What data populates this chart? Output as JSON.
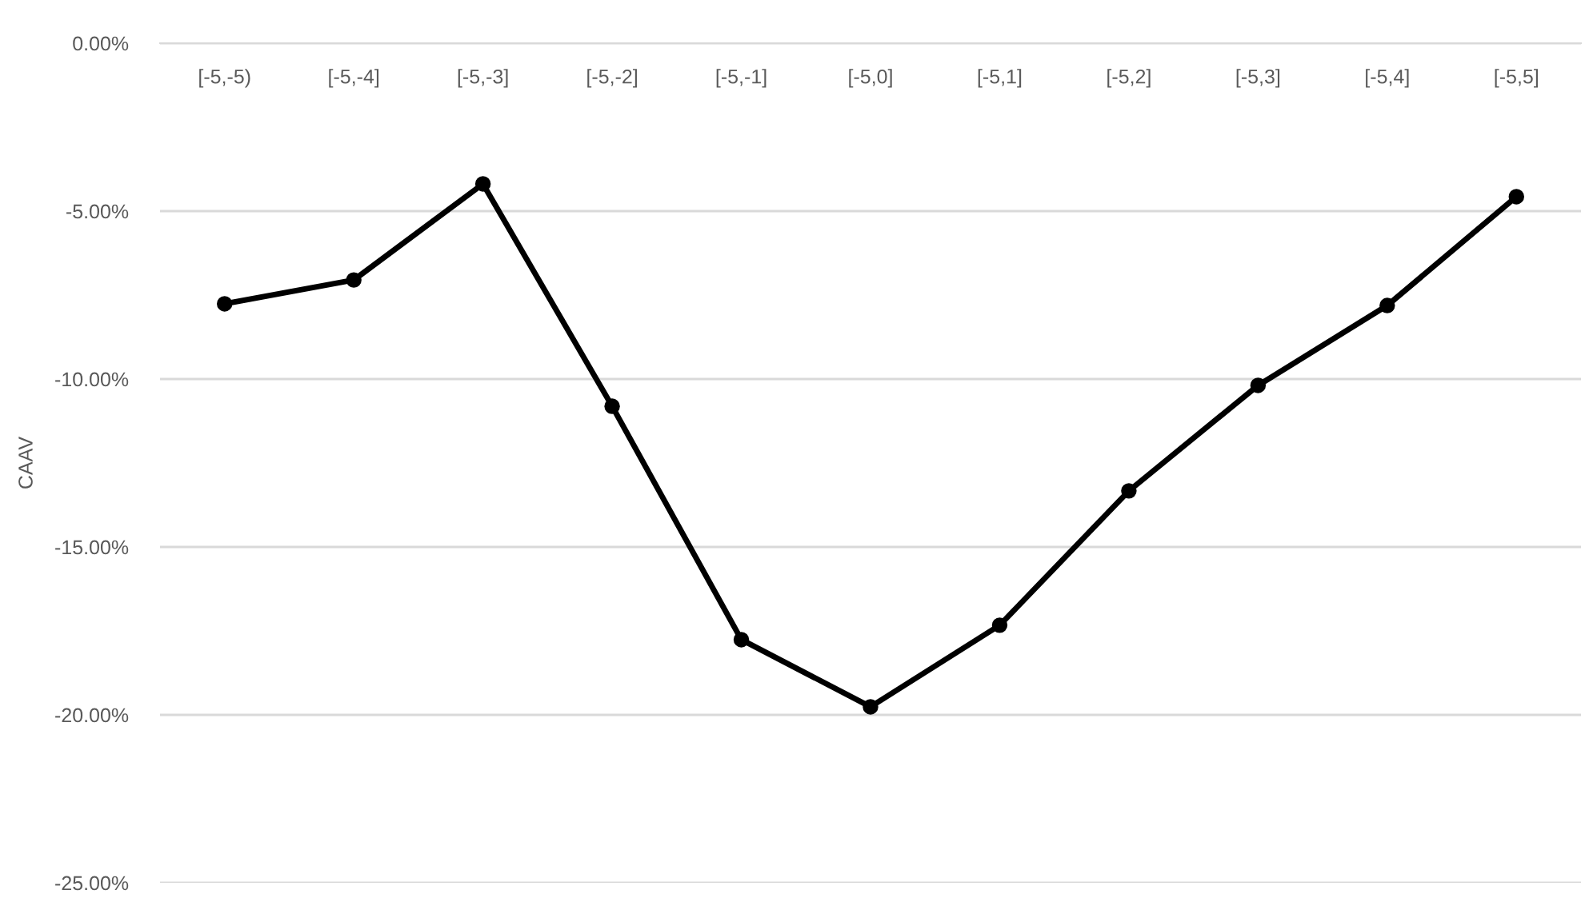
{
  "chart_data": {
    "type": "line",
    "ylabel": "CAAV",
    "categories": [
      "[-5,-5)",
      "[-5,-4]",
      "[-5,-3]",
      "[-5,-2]",
      "[-5,-1]",
      "[-5,0]",
      "[-5,1]",
      "[-5,2]",
      "[-5,3]",
      "[-5,4]",
      "[-5,5]"
    ],
    "series": [
      {
        "color": "#000000",
        "values": [
          -7.76,
          -7.05,
          -4.19,
          -10.81,
          -17.76,
          -19.76,
          -17.33,
          -13.33,
          -10.19,
          -7.81,
          -4.57
        ]
      }
    ],
    "ylim": [
      -25,
      0
    ],
    "yticks": [
      {
        "value": 0,
        "label": "0.00%"
      },
      {
        "value": -5,
        "label": "-5.00%"
      },
      {
        "value": -10,
        "label": "-10.00%"
      },
      {
        "value": -15,
        "label": "-15.00%"
      },
      {
        "value": -20,
        "label": "-20.00%"
      },
      {
        "value": -25,
        "label": "-25.00%"
      }
    ],
    "grid": "y",
    "marker": "circle",
    "line_style": "solid"
  }
}
